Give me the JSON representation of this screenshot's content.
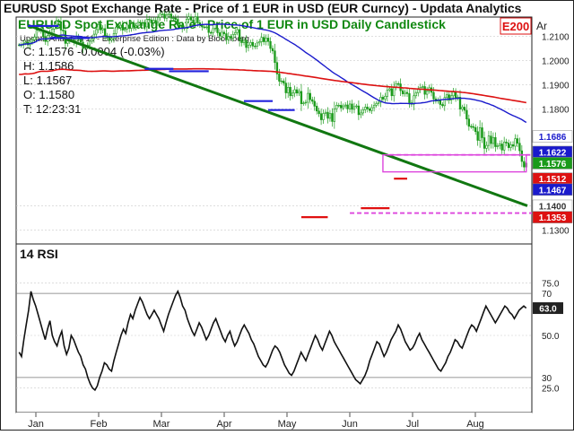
{
  "header": {
    "title_left": "EURUSD Spot Exchange Rate - Price of 1 EUR in USD (EUR Curncy) - Updata Analytics",
    "title_right": "EURUSD Spot Exchange Rate - Price of 1 EUR in USD Daily Candlestick",
    "badge": "E200",
    "axis_corner": "Ar"
  },
  "price_panel": {
    "attribution": "Updata Analytics 11 - Enterprise Edition : Data by Bloomberg",
    "ohlc": [
      {
        "label": "C:",
        "value": "1.1576",
        "extra": "-0.0004 (-0.03%)"
      },
      {
        "label": "H:",
        "value": "1.1586",
        "extra": ""
      },
      {
        "label": "L:",
        "value": "1.1567",
        "extra": ""
      },
      {
        "label": "O:",
        "value": "1.1580",
        "extra": ""
      },
      {
        "label": "T:",
        "value": "12:23:31",
        "extra": ""
      }
    ]
  },
  "rsi_panel": {
    "title": "14 RSI"
  },
  "colors": {
    "candle": "#1a9a1a",
    "ma_blue": "#1a1acc",
    "ma_red": "#dd1111",
    "trendline": "#117711",
    "resistance": "#2222dd",
    "support": "#e01010",
    "box": "#dd44dd",
    "badge_bg": "#ffffff",
    "badge_text": "#dd1111",
    "title_text": "#111111",
    "title_right_text": "#118811"
  },
  "chart_data": [
    {
      "type": "candlestick",
      "title": "EURUSD Spot Exchange Rate - Price of 1 EUR in USD Daily Candlestick",
      "x_ticks": [
        "Jan",
        "Feb",
        "Mar",
        "Apr",
        "May",
        "Jun",
        "Jul",
        "Aug"
      ],
      "y_ticks": [
        "1.2100",
        "1.2000",
        "1.1900",
        "1.1800",
        "1.1400",
        "1.1300"
      ],
      "ylim": [
        1.125,
        1.2175
      ],
      "ohlc_close": [
        1.2064,
        1.2063,
        1.2071,
        1.2075,
        1.2064,
        1.2075,
        1.2085,
        1.2096,
        1.2124,
        1.2128,
        1.2122,
        1.2098,
        1.2078,
        1.2103,
        1.2112,
        1.2129,
        1.2145,
        1.2163,
        1.2159,
        1.2125,
        1.2121,
        1.207,
        1.2081,
        1.2084,
        1.2082,
        1.2074,
        1.2098,
        1.2087,
        1.2075,
        1.2051,
        1.2058,
        1.2063,
        1.2079,
        1.2089,
        1.2108,
        1.2127,
        1.2148,
        1.2126,
        1.2131,
        1.2101,
        1.2094,
        1.2083,
        1.209,
        1.2111,
        1.2137,
        1.2135,
        1.2145,
        1.2125,
        1.2129,
        1.2146,
        1.2132,
        1.2151,
        1.2137,
        1.2142,
        1.2157,
        1.2156,
        1.2155,
        1.2138,
        1.217,
        1.2167,
        1.2155,
        1.2165,
        1.2157,
        1.2177,
        1.2191,
        1.2191,
        1.2174,
        1.2187,
        1.2191,
        1.2174,
        1.2175,
        1.2169,
        1.2144,
        1.2143,
        1.2131,
        1.2135,
        1.217,
        1.218,
        1.2166,
        1.2154,
        1.218,
        1.2155,
        1.2147,
        1.2138,
        1.2137,
        1.2138,
        1.2115,
        1.2113,
        1.2131,
        1.2133,
        1.2114,
        1.21,
        1.2116,
        1.211,
        1.2085,
        1.2099,
        1.2092,
        1.2107,
        1.2115,
        1.2127,
        1.2083,
        1.2073,
        1.2083,
        1.2053,
        1.2063,
        1.2074,
        1.2059,
        1.2058,
        1.2072,
        1.2077,
        1.2095,
        1.2077,
        1.2092,
        1.2078,
        1.2049,
        1.2039,
        1.1991,
        1.1944,
        1.1914,
        1.1915,
        1.1906,
        1.1866,
        1.1889,
        1.1854,
        1.1865,
        1.1879,
        1.1865,
        1.1872,
        1.1821,
        1.1824,
        1.1827,
        1.1864,
        1.1838,
        1.1831,
        1.1811,
        1.1791,
        1.178,
        1.1755,
        1.1781,
        1.1786,
        1.1761,
        1.1781,
        1.1748,
        1.1799,
        1.1815,
        1.1815,
        1.1804,
        1.1812,
        1.1816,
        1.18,
        1.182,
        1.1798,
        1.1809,
        1.1812,
        1.1776,
        1.1783,
        1.1796,
        1.1807,
        1.18,
        1.1793,
        1.1805,
        1.1815,
        1.1822,
        1.1827,
        1.1848,
        1.184,
        1.1852,
        1.1878,
        1.1883,
        1.1854,
        1.1889,
        1.1904,
        1.1903,
        1.1875,
        1.1862,
        1.1868,
        1.1863,
        1.1825,
        1.1819,
        1.1854,
        1.1866,
        1.188,
        1.1889,
        1.1892,
        1.186,
        1.1874,
        1.1887,
        1.1868,
        1.1841,
        1.1832,
        1.1836,
        1.1818,
        1.1813,
        1.1847,
        1.1858,
        1.1836,
        1.1854,
        1.1869,
        1.1845,
        1.1848,
        1.1799,
        1.1807,
        1.1794,
        1.1758,
        1.1728,
        1.1727,
        1.1723,
        1.1706,
        1.167,
        1.1722,
        1.1681,
        1.1637,
        1.1649,
        1.1688,
        1.1657,
        1.1682,
        1.1644,
        1.1648,
        1.1655,
        1.163,
        1.1663,
        1.1659,
        1.164,
        1.1652,
        1.1646,
        1.1677,
        1.1658,
        1.1627,
        1.1583,
        1.156,
        1.1576
      ]
    },
    {
      "type": "line",
      "title": "14 RSI",
      "x_ticks": [
        "Jan",
        "Feb",
        "Mar",
        "Apr",
        "May",
        "Jun",
        "Jul",
        "Aug"
      ],
      "y_ticks": [
        "75.0",
        "70",
        "50.0",
        "30",
        "25.0"
      ],
      "ylim": [
        15,
        85
      ],
      "last_value": "63.0",
      "values": [
        42,
        40,
        48,
        55,
        62,
        71,
        67,
        64,
        60,
        56,
        52,
        48,
        53,
        57,
        50,
        47,
        45,
        49,
        52,
        45,
        41,
        44,
        50,
        48,
        45,
        42,
        40,
        36,
        34,
        30,
        27,
        25,
        24,
        26,
        30,
        33,
        37,
        36,
        34,
        33,
        38,
        42,
        46,
        50,
        53,
        51,
        56,
        60,
        58,
        62,
        65,
        68,
        66,
        63,
        60,
        58,
        60,
        62,
        60,
        58,
        55,
        52,
        56,
        60,
        63,
        66,
        69,
        71,
        68,
        64,
        62,
        58,
        55,
        52,
        50,
        53,
        56,
        54,
        51,
        48,
        50,
        53,
        56,
        58,
        55,
        52,
        49,
        47,
        50,
        52,
        48,
        45,
        47,
        50,
        53,
        55,
        53,
        51,
        48,
        46,
        43,
        40,
        38,
        36,
        35,
        37,
        40,
        43,
        45,
        44,
        42,
        39,
        36,
        34,
        32,
        31,
        33,
        36,
        39,
        42,
        40,
        38,
        41,
        44,
        47,
        50,
        48,
        45,
        43,
        46,
        49,
        52,
        50,
        47,
        45,
        43,
        41,
        39,
        37,
        35,
        33,
        31,
        29,
        28,
        27,
        29,
        31,
        34,
        38,
        41,
        44,
        47,
        46,
        43,
        40,
        42,
        45,
        48,
        50,
        52,
        55,
        53,
        50,
        47,
        45,
        43,
        44,
        46,
        49,
        51,
        48,
        46,
        44,
        42,
        40,
        38,
        36,
        34,
        33,
        35,
        37,
        40,
        42,
        45,
        48,
        47,
        45,
        44,
        47,
        50,
        53,
        55,
        54,
        52,
        55,
        58,
        61,
        64,
        62,
        60,
        58,
        56,
        58,
        60,
        62,
        64,
        63,
        61,
        60,
        58,
        60,
        62,
        63,
        64,
        63
      ]
    }
  ],
  "price_labels": [
    {
      "value": "1.1686",
      "color": "#ffffff",
      "text_color": "#1a1acc"
    },
    {
      "value": "1.1622",
      "color": "#1a1acc",
      "text_color": "#ffffff"
    },
    {
      "value": "1.1576",
      "color": "#1a9a1a",
      "text_color": "#ffffff"
    },
    {
      "value": "1.1512",
      "color": "#dd1111",
      "text_color": "#ffffff"
    },
    {
      "value": "1.1467",
      "color": "#1a1acc",
      "text_color": "#ffffff"
    },
    {
      "value": "1.1400",
      "color": "#ffffff",
      "text_color": "#333333"
    },
    {
      "value": "1.1353",
      "color": "#dd1111",
      "text_color": "#ffffff"
    }
  ],
  "rsi_label": {
    "value": "63.0",
    "color": "#222222",
    "text_color": "#ffffff"
  }
}
